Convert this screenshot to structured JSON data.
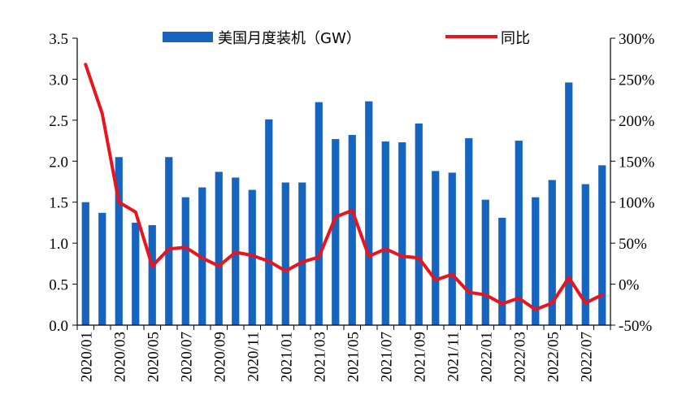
{
  "chart_data": {
    "type": "bar+line",
    "title": "",
    "legend": {
      "placement": "top",
      "bar_label": "美国月度装机（GW）",
      "line_label": "同比"
    },
    "categories": [
      "2020/01",
      "2020/02",
      "2020/03",
      "2020/04",
      "2020/05",
      "2020/06",
      "2020/07",
      "2020/08",
      "2020/09",
      "2020/10",
      "2020/11",
      "2020/12",
      "2021/01",
      "2021/02",
      "2021/03",
      "2021/04",
      "2021/05",
      "2021/06",
      "2021/07",
      "2021/08",
      "2021/09",
      "2021/10",
      "2021/11",
      "2021/12",
      "2022/01",
      "2022/02",
      "2022/03",
      "2022/04",
      "2022/05",
      "2022/06",
      "2022/07",
      "2022/08"
    ],
    "x_tick_labels": [
      "2020/01",
      "2020/03",
      "2020/05",
      "2020/07",
      "2020/09",
      "2020/11",
      "2021/01",
      "2021/03",
      "2021/05",
      "2021/07",
      "2021/09",
      "2021/11",
      "2022/01",
      "2022/03",
      "2022/05",
      "2022/07"
    ],
    "series": [
      {
        "name": "美国月度装机（GW）",
        "type": "bar",
        "axis": "left",
        "color": "#1565C0",
        "values": [
          1.5,
          1.37,
          2.05,
          1.25,
          1.22,
          2.05,
          1.56,
          1.68,
          1.87,
          1.8,
          1.65,
          2.51,
          1.74,
          1.74,
          2.72,
          2.27,
          2.32,
          2.73,
          2.24,
          2.23,
          2.46,
          1.88,
          1.86,
          2.28,
          1.53,
          1.31,
          2.25,
          1.56,
          1.77,
          2.96,
          1.72,
          1.95
        ]
      },
      {
        "name": "同比",
        "type": "line",
        "axis": "right",
        "color": "#E8141E",
        "values": [
          268,
          208,
          100,
          88,
          22,
          43,
          45,
          32,
          22,
          39,
          35,
          28,
          16,
          27,
          33,
          82,
          90,
          34,
          43,
          34,
          32,
          5,
          12,
          -10,
          -13,
          -24,
          -17,
          -31,
          -23,
          8,
          -23,
          -13
        ]
      }
    ],
    "y_left": {
      "min": 0,
      "max": 3.5,
      "ticks": [
        "0.0",
        "0.5",
        "1.0",
        "1.5",
        "2.0",
        "2.5",
        "3.0",
        "3.5"
      ]
    },
    "y_right": {
      "min": -50,
      "max": 300,
      "ticks": [
        "-50%",
        "0%",
        "50%",
        "100%",
        "150%",
        "200%",
        "250%",
        "300%"
      ]
    }
  }
}
